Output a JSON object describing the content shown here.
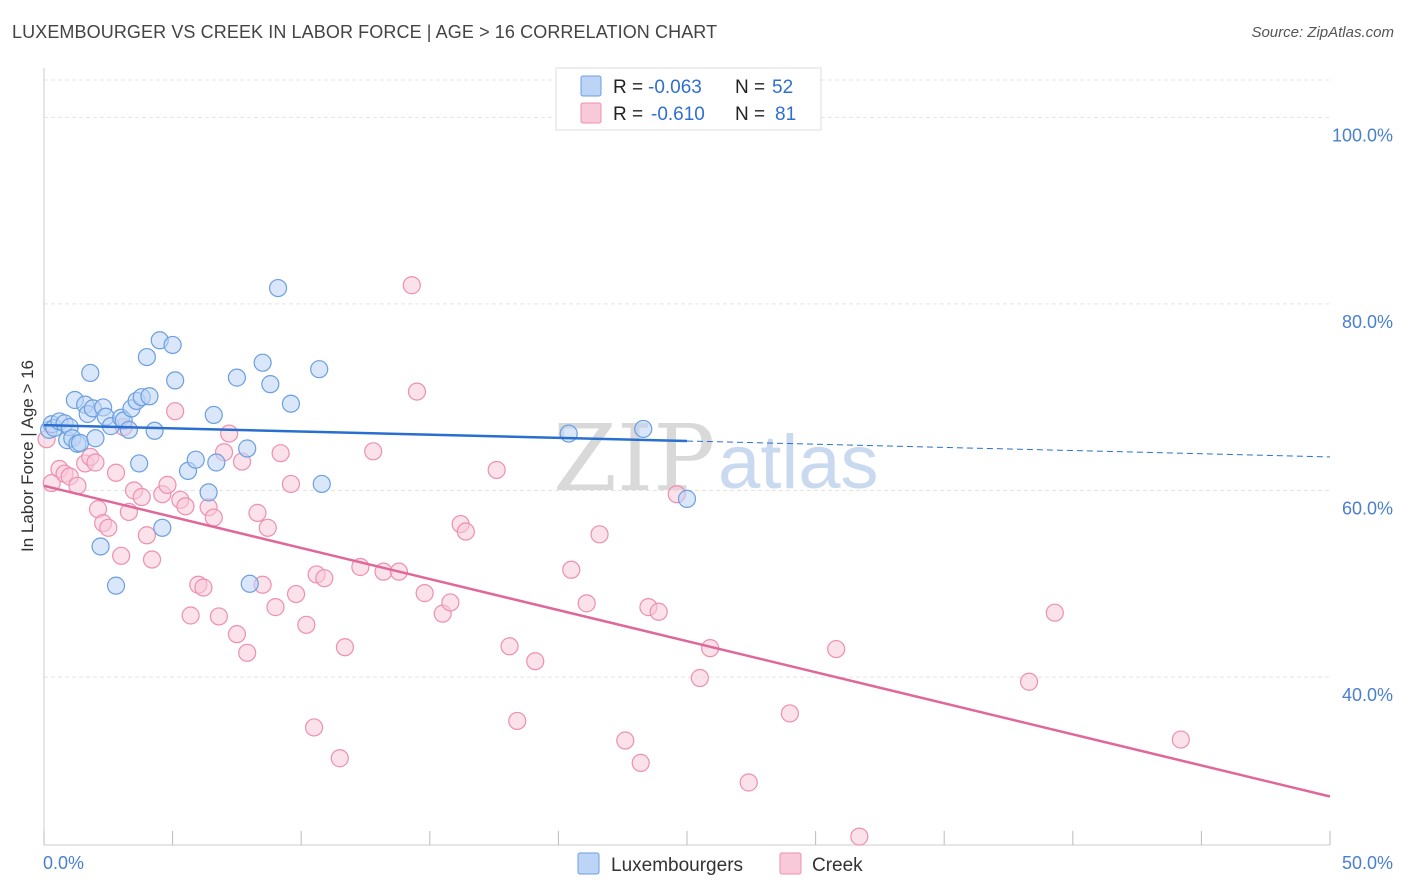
{
  "title": "LUXEMBOURGER VS CREEK IN LABOR FORCE | AGE > 16 CORRELATION CHART",
  "source": "Source: ZipAtlas.com",
  "colors": {
    "luxembourgers": "#6a9fe0",
    "luxembourgers_fill": "#bcd4f5",
    "luxembourgers_line": "#2a6fcf",
    "creek": "#ee8fb0",
    "creek_fill": "#f8c9d8",
    "creek_line": "#e0679a",
    "tick": "#4a7fd0"
  },
  "legend": {
    "r_label": "R =",
    "n_label": "N =",
    "rows": [
      {
        "series": "Luxembourgers",
        "r": "-0.063",
        "n": "52"
      },
      {
        "series": "Creek",
        "r": "-0.610",
        "n": "81"
      }
    ]
  },
  "watermark": {
    "zip": "ZIP",
    "atlas": "atlas"
  },
  "chart_data": {
    "type": "scatter",
    "title": "LUXEMBOURGER VS CREEK IN LABOR FORCE | AGE > 16 CORRELATION CHART",
    "xlabel": "",
    "ylabel": "In Labor Force | Age > 16",
    "xlim": [
      0,
      50
    ],
    "ylim": [
      22,
      104
    ],
    "x_tick_labels": [
      "0.0%",
      "50.0%"
    ],
    "y_ticks": [
      40,
      60,
      80,
      100
    ],
    "y_tick_labels": [
      "40.0%",
      "60.0%",
      "80.0%",
      "100.0%"
    ],
    "grid": true,
    "legend_position": "bottom",
    "series": [
      {
        "name": "Luxembourgers",
        "points": [
          [
            0.2,
            66.5
          ],
          [
            0.3,
            67.1
          ],
          [
            0.4,
            66.7
          ],
          [
            0.6,
            67.4
          ],
          [
            0.8,
            67.2
          ],
          [
            0.9,
            65.4
          ],
          [
            1.0,
            66.8
          ],
          [
            1.1,
            65.6
          ],
          [
            1.2,
            69.7
          ],
          [
            1.3,
            65.0
          ],
          [
            1.4,
            65.1
          ],
          [
            1.6,
            69.2
          ],
          [
            1.7,
            68.2
          ],
          [
            1.8,
            72.6
          ],
          [
            1.9,
            68.8
          ],
          [
            2.0,
            65.6
          ],
          [
            2.2,
            54.0
          ],
          [
            2.3,
            68.9
          ],
          [
            2.4,
            67.9
          ],
          [
            2.6,
            66.9
          ],
          [
            2.8,
            49.8
          ],
          [
            3.0,
            67.8
          ],
          [
            3.1,
            67.5
          ],
          [
            3.3,
            66.5
          ],
          [
            3.4,
            68.8
          ],
          [
            3.6,
            69.6
          ],
          [
            3.7,
            62.9
          ],
          [
            3.8,
            70.0
          ],
          [
            4.0,
            74.3
          ],
          [
            4.1,
            70.1
          ],
          [
            4.3,
            66.4
          ],
          [
            4.5,
            76.1
          ],
          [
            4.6,
            56.0
          ],
          [
            5.0,
            75.6
          ],
          [
            5.1,
            71.8
          ],
          [
            5.6,
            62.1
          ],
          [
            5.9,
            63.3
          ],
          [
            6.4,
            59.8
          ],
          [
            6.6,
            68.1
          ],
          [
            6.7,
            63.0
          ],
          [
            7.5,
            72.1
          ],
          [
            7.9,
            64.5
          ],
          [
            8.0,
            50.0
          ],
          [
            8.5,
            73.7
          ],
          [
            8.8,
            71.4
          ],
          [
            9.1,
            81.7
          ],
          [
            9.6,
            69.3
          ],
          [
            10.7,
            73.0
          ],
          [
            10.8,
            60.7
          ],
          [
            20.4,
            66.1
          ],
          [
            23.3,
            66.6
          ],
          [
            25.0,
            59.1
          ]
        ]
      },
      {
        "name": "Creek",
        "points": [
          [
            0.1,
            65.5
          ],
          [
            0.3,
            60.8
          ],
          [
            0.6,
            62.3
          ],
          [
            0.8,
            61.8
          ],
          [
            1.0,
            61.5
          ],
          [
            1.3,
            60.5
          ],
          [
            1.6,
            62.9
          ],
          [
            1.8,
            63.6
          ],
          [
            2.0,
            63.0
          ],
          [
            2.1,
            58.0
          ],
          [
            2.3,
            56.5
          ],
          [
            2.5,
            56.0
          ],
          [
            2.8,
            61.9
          ],
          [
            3.0,
            53.0
          ],
          [
            3.1,
            66.8
          ],
          [
            3.3,
            57.7
          ],
          [
            3.5,
            60.0
          ],
          [
            3.8,
            59.3
          ],
          [
            4.0,
            55.2
          ],
          [
            4.2,
            52.6
          ],
          [
            4.6,
            59.6
          ],
          [
            4.8,
            60.6
          ],
          [
            5.1,
            68.5
          ],
          [
            5.3,
            59.0
          ],
          [
            5.5,
            58.3
          ],
          [
            5.7,
            46.6
          ],
          [
            6.0,
            49.9
          ],
          [
            6.2,
            49.6
          ],
          [
            6.4,
            58.2
          ],
          [
            6.6,
            57.1
          ],
          [
            6.8,
            46.5
          ],
          [
            7.0,
            64.1
          ],
          [
            7.2,
            66.1
          ],
          [
            7.5,
            44.6
          ],
          [
            7.7,
            63.1
          ],
          [
            7.9,
            42.6
          ],
          [
            8.3,
            57.6
          ],
          [
            8.5,
            49.9
          ],
          [
            8.7,
            56.0
          ],
          [
            9.0,
            47.5
          ],
          [
            9.2,
            64.0
          ],
          [
            9.6,
            60.7
          ],
          [
            9.8,
            48.9
          ],
          [
            10.2,
            45.6
          ],
          [
            10.5,
            34.6
          ],
          [
            10.6,
            51.0
          ],
          [
            10.9,
            50.6
          ],
          [
            11.5,
            31.3
          ],
          [
            11.7,
            43.2
          ],
          [
            12.3,
            51.8
          ],
          [
            12.8,
            64.2
          ],
          [
            13.2,
            51.3
          ],
          [
            13.8,
            51.3
          ],
          [
            14.3,
            82.0
          ],
          [
            14.5,
            70.6
          ],
          [
            14.8,
            49.0
          ],
          [
            15.5,
            46.8
          ],
          [
            15.8,
            48.0
          ],
          [
            16.2,
            56.4
          ],
          [
            16.4,
            55.6
          ],
          [
            17.6,
            62.2
          ],
          [
            18.1,
            43.3
          ],
          [
            18.4,
            35.3
          ],
          [
            19.1,
            41.7
          ],
          [
            20.5,
            51.5
          ],
          [
            21.1,
            47.9
          ],
          [
            21.6,
            55.3
          ],
          [
            22.6,
            33.2
          ],
          [
            23.2,
            30.8
          ],
          [
            23.5,
            47.5
          ],
          [
            23.9,
            47.0
          ],
          [
            24.6,
            59.6
          ],
          [
            25.5,
            39.9
          ],
          [
            25.9,
            43.1
          ],
          [
            27.4,
            28.7
          ],
          [
            29.0,
            36.1
          ],
          [
            30.8,
            43.0
          ],
          [
            31.7,
            22.9
          ],
          [
            38.3,
            39.5
          ],
          [
            39.3,
            46.9
          ],
          [
            44.2,
            33.3
          ]
        ]
      }
    ],
    "trend_lines": [
      {
        "series": "Luxembourgers",
        "x": [
          0,
          25
        ],
        "y": [
          67.0,
          65.3
        ],
        "dashed_extension_to": [
          50,
          63.6
        ]
      },
      {
        "series": "Creek",
        "x": [
          0,
          50
        ],
        "y": [
          60.5,
          27.2
        ]
      }
    ]
  }
}
